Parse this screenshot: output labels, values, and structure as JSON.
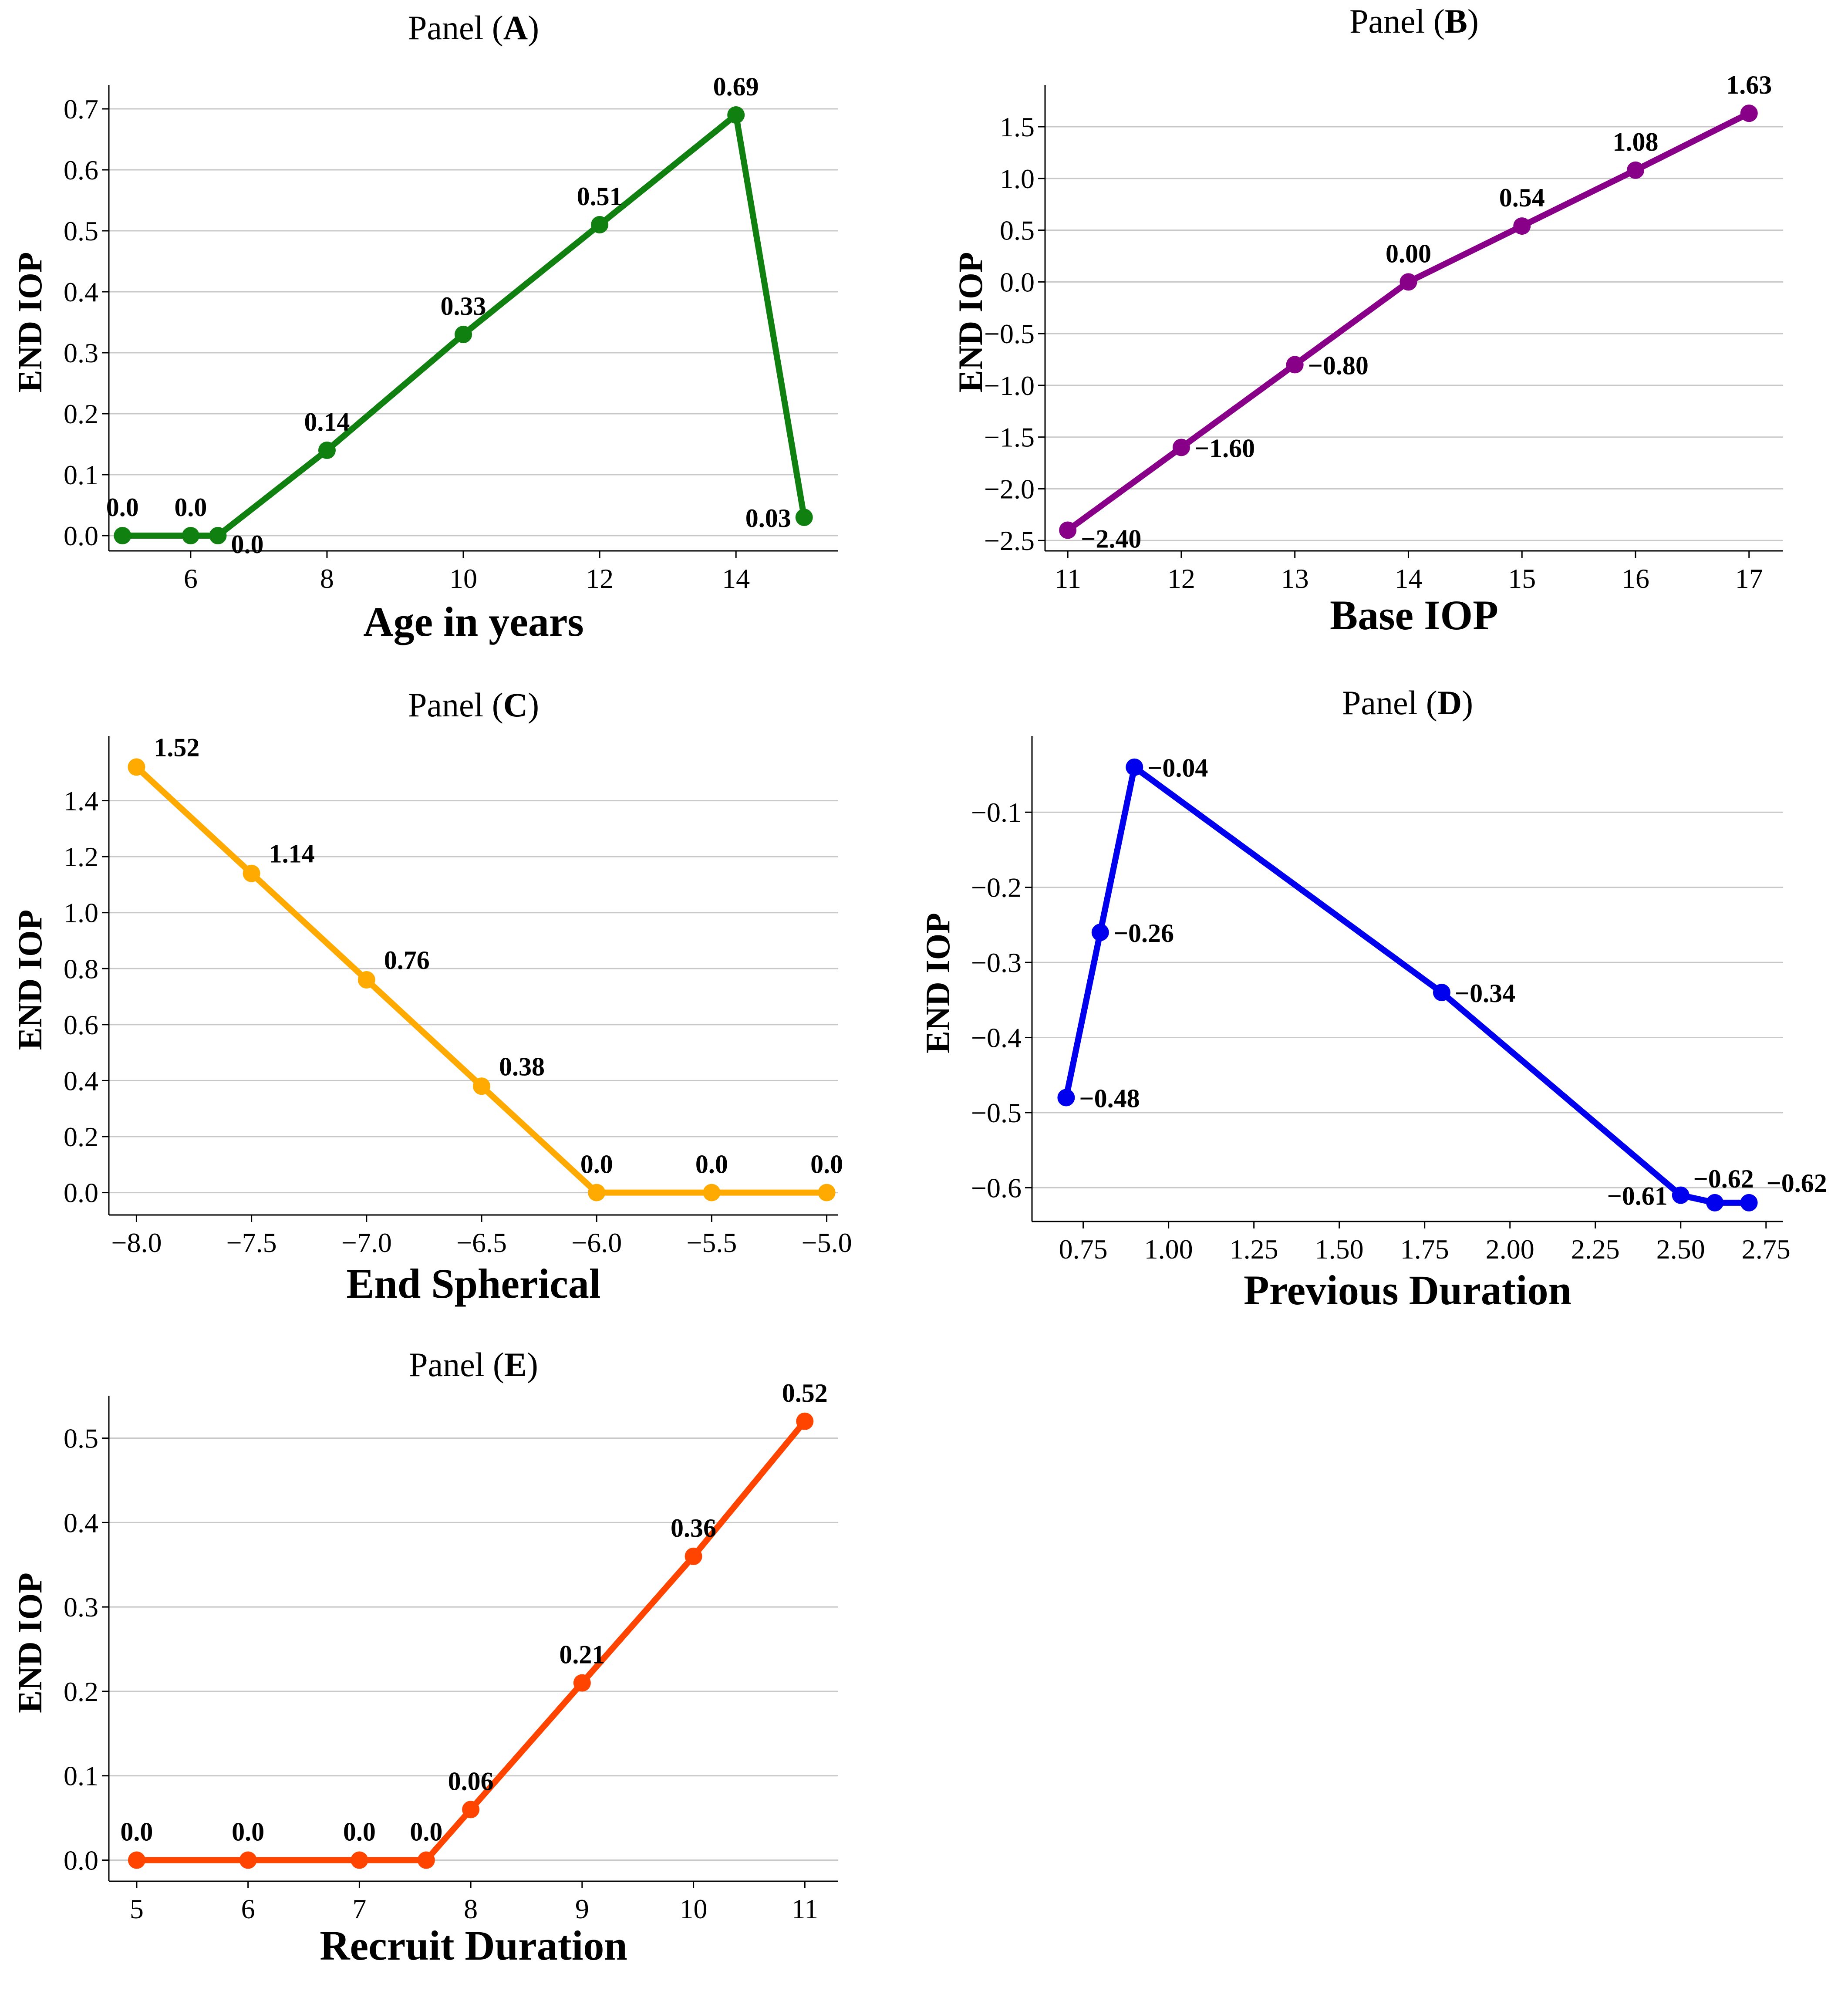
{
  "chart_data": [
    {
      "id": "A",
      "type": "line",
      "title_prefix": "Panel (",
      "title_letter": "A",
      "title_suffix": ")",
      "xlabel": "Age in years",
      "ylabel": "END IOP",
      "color": "#108010",
      "x": [
        5,
        6,
        6.4,
        8,
        10,
        12,
        14,
        15
      ],
      "y": [
        0.0,
        0.0,
        0.0,
        0.14,
        0.33,
        0.51,
        0.69,
        0.03
      ],
      "labels": [
        "0.0",
        "0.0",
        "0.0",
        "0.14",
        "0.33",
        "0.51",
        "0.69",
        "0.03"
      ],
      "label_pos": [
        "above",
        "above",
        "below-right",
        "above",
        "above",
        "above",
        "above",
        "left"
      ],
      "xlim": [
        4.8,
        15.5
      ],
      "ylim": [
        -0.025,
        0.725
      ],
      "xticks": [
        6,
        8,
        10,
        12,
        14
      ],
      "xtick_labels": [
        "6",
        "8",
        "10",
        "12",
        "14"
      ],
      "yticks": [
        0.0,
        0.1,
        0.2,
        0.3,
        0.4,
        0.5,
        0.6,
        0.7
      ],
      "ytick_labels": [
        "0.0",
        "0.1",
        "0.2",
        "0.3",
        "0.4",
        "0.5",
        "0.6",
        "0.7"
      ],
      "grid": "horizontal"
    },
    {
      "id": "B",
      "type": "line",
      "title_prefix": "Panel (",
      "title_letter": "B",
      "title_suffix": ")",
      "xlabel": "Base IOP",
      "ylabel": "END IOP",
      "color": "#880088",
      "x": [
        11,
        12,
        13,
        14,
        15,
        16,
        17
      ],
      "y": [
        -2.4,
        -1.6,
        -0.8,
        0.0,
        0.54,
        1.08,
        1.63
      ],
      "labels": [
        "−2.40",
        "−1.60",
        "−0.80",
        "0.00",
        "0.54",
        "1.08",
        "1.63"
      ],
      "label_pos": [
        "below-right",
        "right",
        "right",
        "above",
        "above",
        "above",
        "above"
      ],
      "xlim": [
        10.8,
        17.3
      ],
      "ylim": [
        -2.6,
        1.82
      ],
      "xticks": [
        11,
        12,
        13,
        14,
        15,
        16,
        17
      ],
      "xtick_labels": [
        "11",
        "12",
        "13",
        "14",
        "15",
        "16",
        "17"
      ],
      "yticks": [
        -2.5,
        -2.0,
        -1.5,
        -1.0,
        -0.5,
        0.0,
        0.5,
        1.0,
        1.5
      ],
      "ytick_labels": [
        "−2.5",
        "−2.0",
        "−1.5",
        "−1.0",
        "−0.5",
        "0.0",
        "0.5",
        "1.0",
        "1.5"
      ],
      "grid": "horizontal"
    },
    {
      "id": "C",
      "type": "line",
      "title_prefix": "Panel (",
      "title_letter": "C",
      "title_suffix": ")",
      "xlabel": "End Spherical",
      "ylabel": "END IOP",
      "color": "#ffaa00",
      "x": [
        -8.0,
        -7.5,
        -7.0,
        -6.5,
        -6.0,
        -5.5,
        -5.0
      ],
      "y": [
        1.52,
        1.14,
        0.76,
        0.38,
        0.0,
        0.0,
        0.0
      ],
      "labels": [
        "1.52",
        "1.14",
        "0.76",
        "0.38",
        "0.0",
        "0.0",
        "0.0"
      ],
      "label_pos": [
        "above-right",
        "above-right",
        "above-right",
        "above-right",
        "above",
        "above",
        "above"
      ],
      "xlim": [
        -8.12,
        -4.95
      ],
      "ylim": [
        -0.08,
        1.6
      ],
      "xticks": [
        -8.0,
        -7.5,
        -7.0,
        -6.5,
        -6.0,
        -5.5,
        -5.0
      ],
      "xtick_labels": [
        "−8.0",
        "−7.5",
        "−7.0",
        "−6.5",
        "−6.0",
        "−5.5",
        "−5.0"
      ],
      "yticks": [
        0.0,
        0.2,
        0.4,
        0.6,
        0.8,
        1.0,
        1.2,
        1.4
      ],
      "ytick_labels": [
        "0.0",
        "0.2",
        "0.4",
        "0.6",
        "0.8",
        "1.0",
        "1.2",
        "1.4"
      ],
      "grid": "horizontal"
    },
    {
      "id": "D",
      "type": "line",
      "title_prefix": "Panel (",
      "title_letter": "D",
      "title_suffix": ")",
      "xlabel": "Previous Duration",
      "ylabel": "END IOP",
      "color": "#0000ee",
      "x": [
        0.7,
        0.8,
        0.9,
        1.8,
        2.5,
        2.6,
        2.7
      ],
      "y": [
        -0.48,
        -0.26,
        -0.04,
        -0.34,
        -0.61,
        -0.62,
        -0.62
      ],
      "labels": [
        "−0.48",
        "−0.26",
        "−0.04",
        "−0.34",
        "−0.61",
        "−0.62",
        "−0.62"
      ],
      "label_pos": [
        "right",
        "right",
        "right",
        "right",
        "left",
        "above-left",
        "above-right"
      ],
      "xlim": [
        0.6,
        2.8
      ],
      "ylim": [
        -0.645,
        -0.01
      ],
      "xticks": [
        0.75,
        1.0,
        1.25,
        1.5,
        1.75,
        2.0,
        2.25,
        2.5,
        2.75
      ],
      "xtick_labels": [
        "0.75",
        "1.00",
        "1.25",
        "1.50",
        "1.75",
        "2.00",
        "2.25",
        "2.50",
        "2.75"
      ],
      "yticks": [
        -0.6,
        -0.5,
        -0.4,
        -0.3,
        -0.2,
        -0.1
      ],
      "ytick_labels": [
        "−0.6",
        "−0.5",
        "−0.4",
        "−0.3",
        "−0.2",
        "−0.1"
      ],
      "grid": "horizontal"
    },
    {
      "id": "E",
      "type": "line",
      "title_prefix": "Panel (",
      "title_letter": "E",
      "title_suffix": ")",
      "xlabel": "Recruit Duration",
      "ylabel": "END IOP",
      "color": "#ff4400",
      "x": [
        5,
        6,
        7,
        7.6,
        8,
        9,
        10,
        11
      ],
      "y": [
        0.0,
        0.0,
        0.0,
        0.0,
        0.06,
        0.21,
        0.36,
        0.52
      ],
      "labels": [
        "0.0",
        "0.0",
        "0.0",
        "0.0",
        "0.06",
        "0.21",
        "0.36",
        "0.52"
      ],
      "label_pos": [
        "above",
        "above",
        "above",
        "above",
        "above",
        "above",
        "above",
        "above"
      ],
      "xlim": [
        4.75,
        11.3
      ],
      "ylim": [
        -0.025,
        0.54
      ],
      "xticks": [
        5,
        6,
        7,
        8,
        9,
        10,
        11
      ],
      "xtick_labels": [
        "5",
        "6",
        "7",
        "8",
        "9",
        "10",
        "11"
      ],
      "yticks": [
        0.0,
        0.1,
        0.2,
        0.3,
        0.4,
        0.5
      ],
      "ytick_labels": [
        "0.0",
        "0.1",
        "0.2",
        "0.3",
        "0.4",
        "0.5"
      ],
      "grid": "horizontal"
    }
  ]
}
